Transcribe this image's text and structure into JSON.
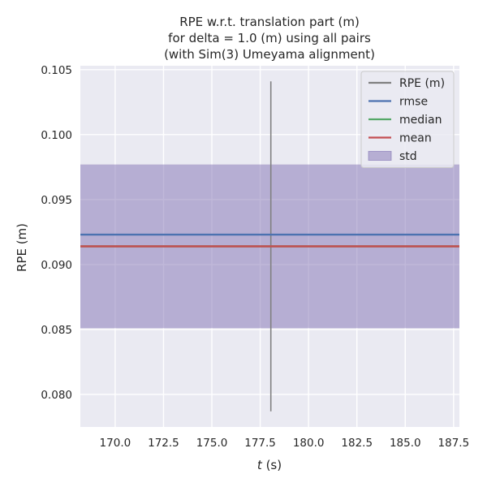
{
  "colors": {
    "background": "#eaeaf2",
    "grid": "#ffffff",
    "rpe": "#808080",
    "rmse": "#4c72b0",
    "median": "#55a868",
    "mean": "#c44e52",
    "std_fill": "#8172b3"
  },
  "chart_data": {
    "type": "line",
    "title_lines": [
      "RPE w.r.t. translation part (m)",
      "for delta = 1.0 (m) using all pairs",
      "(with Sim(3) Umeyama alignment)"
    ],
    "xlabel_var": "t",
    "xlabel_unit": " (s)",
    "ylabel": "RPE (m)",
    "xlim": [
      168.2,
      187.8
    ],
    "ylim": [
      0.0775,
      0.1053
    ],
    "x_ticks": [
      "170.0",
      "172.5",
      "175.0",
      "177.5",
      "180.0",
      "182.5",
      "185.0",
      "187.5"
    ],
    "y_ticks": [
      "0.080",
      "0.085",
      "0.090",
      "0.095",
      "0.100",
      "0.105"
    ],
    "grid": true,
    "legend_position": "top-right",
    "series": [
      {
        "name": "RPE (m)",
        "kind": "line",
        "x": [
          178.05,
          178.05
        ],
        "y": [
          0.0787,
          0.1041
        ]
      },
      {
        "name": "rmse",
        "kind": "hline",
        "value": 0.0923
      },
      {
        "name": "median",
        "kind": "hline",
        "value": 0.0914
      },
      {
        "name": "mean",
        "kind": "hline",
        "value": 0.0914
      }
    ],
    "std_band": {
      "name": "std",
      "lower": 0.0851,
      "upper": 0.0977
    }
  }
}
